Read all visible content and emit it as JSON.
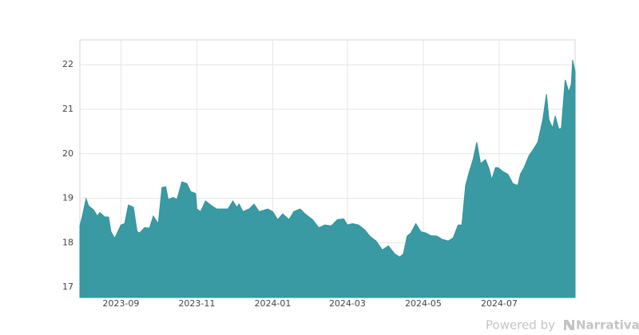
{
  "chart_data": {
    "type": "area",
    "x": [
      "2023-07-30",
      "2023-08-01",
      "2023-08-04",
      "2023-08-06",
      "2023-08-10",
      "2023-08-13",
      "2023-08-15",
      "2023-08-19",
      "2023-08-22",
      "2023-08-24",
      "2023-08-27",
      "2023-09-01",
      "2023-09-04",
      "2023-09-07",
      "2023-09-11",
      "2023-09-14",
      "2023-09-16",
      "2023-09-20",
      "2023-09-24",
      "2023-09-27",
      "2023-10-01",
      "2023-10-04",
      "2023-10-07",
      "2023-10-09",
      "2023-10-13",
      "2023-10-16",
      "2023-10-20",
      "2023-10-24",
      "2023-10-27",
      "2023-10-31",
      "2023-11-01",
      "2023-11-04",
      "2023-11-08",
      "2023-11-13",
      "2023-11-17",
      "2023-11-22",
      "2023-11-26",
      "2023-11-30",
      "2023-12-03",
      "2023-12-05",
      "2023-12-08",
      "2023-12-13",
      "2023-12-17",
      "2023-12-21",
      "2023-12-28",
      "2024-01-01",
      "2024-01-05",
      "2024-01-09",
      "2024-01-14",
      "2024-01-18",
      "2024-01-23",
      "2024-01-27",
      "2024-02-02",
      "2024-02-07",
      "2024-02-12",
      "2024-02-17",
      "2024-02-22",
      "2024-02-27",
      "2024-03-01",
      "2024-03-05",
      "2024-03-10",
      "2024-03-15",
      "2024-03-19",
      "2024-03-24",
      "2024-03-29",
      "2024-04-03",
      "2024-04-08",
      "2024-04-12",
      "2024-04-15",
      "2024-04-18",
      "2024-04-21",
      "2024-04-25",
      "2024-04-29",
      "2024-05-03",
      "2024-05-07",
      "2024-05-12",
      "2024-05-16",
      "2024-05-21",
      "2024-05-25",
      "2024-05-29",
      "2024-06-01",
      "2024-06-04",
      "2024-06-07",
      "2024-06-10",
      "2024-06-13",
      "2024-06-16",
      "2024-06-20",
      "2024-06-23",
      "2024-06-25",
      "2024-06-28",
      "2024-06-30",
      "2024-07-04",
      "2024-07-08",
      "2024-07-12",
      "2024-07-16",
      "2024-07-18",
      "2024-07-21",
      "2024-07-25",
      "2024-07-28",
      "2024-08-01",
      "2024-08-05",
      "2024-08-08",
      "2024-08-10",
      "2024-08-13",
      "2024-08-15",
      "2024-08-18",
      "2024-08-20",
      "2024-08-23",
      "2024-08-26",
      "2024-08-28",
      "2024-08-29",
      "2024-08-31"
    ],
    "values": [
      18.38,
      18.6,
      18.99,
      18.83,
      18.74,
      18.6,
      18.68,
      18.58,
      18.58,
      18.25,
      18.1,
      18.4,
      18.43,
      18.85,
      18.8,
      18.25,
      18.22,
      18.34,
      18.33,
      18.6,
      18.43,
      19.24,
      19.26,
      18.97,
      19.02,
      18.97,
      19.37,
      19.33,
      19.15,
      19.11,
      18.76,
      18.7,
      18.94,
      18.83,
      18.76,
      18.76,
      18.76,
      18.94,
      18.8,
      18.87,
      18.7,
      18.76,
      18.87,
      18.7,
      18.76,
      18.7,
      18.52,
      18.65,
      18.52,
      18.7,
      18.76,
      18.65,
      18.52,
      18.34,
      18.4,
      18.38,
      18.52,
      18.54,
      18.4,
      18.43,
      18.4,
      18.29,
      18.15,
      18.04,
      17.84,
      17.93,
      17.75,
      17.68,
      17.75,
      18.15,
      18.22,
      18.43,
      18.25,
      18.22,
      18.16,
      18.15,
      18.08,
      18.04,
      18.11,
      18.4,
      18.4,
      19.29,
      19.6,
      19.87,
      20.26,
      19.78,
      19.87,
      19.65,
      19.42,
      19.69,
      19.69,
      19.6,
      19.54,
      19.33,
      19.29,
      19.54,
      19.69,
      19.96,
      20.08,
      20.26,
      20.76,
      21.34,
      20.76,
      20.58,
      20.85,
      20.55,
      20.58,
      21.66,
      21.39,
      21.57,
      22.11,
      21.84
    ],
    "color": "#2e959e",
    "xlim": [
      "2023-07-30",
      "2024-08-31"
    ],
    "xticks": [
      "2023-09",
      "2023-11",
      "2024-01",
      "2024-03",
      "2024-05",
      "2024-07"
    ],
    "ylim": [
      16.77,
      22.56
    ],
    "yticks": [
      17,
      18,
      19,
      20,
      21,
      22
    ],
    "grid": true
  },
  "footer": {
    "prefix": "Powered by",
    "brand": "Narrativa"
  }
}
